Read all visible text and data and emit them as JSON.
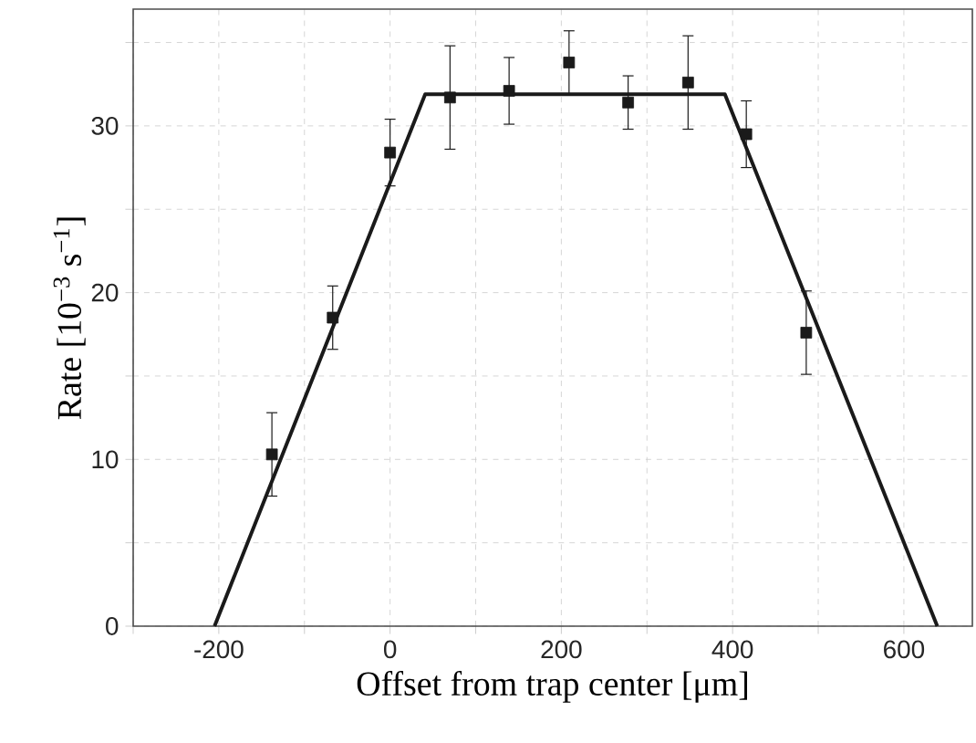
{
  "chart_data": {
    "type": "scatter",
    "xlabel": "Offset from trap center [μm]",
    "ylabel": "Rate [10$^{−3}$ s$^{−1}$]",
    "series": [
      {
        "color": "#1a1a1a",
        "marker": "square",
        "x": [
          -138,
          -67,
          0,
          70,
          139,
          209,
          278,
          348,
          416,
          486
        ],
        "values": [
          10.3,
          18.5,
          28.4,
          31.7,
          32.1,
          33.8,
          31.4,
          32.6,
          29.5,
          17.6
        ],
        "errors": [
          2.5,
          1.9,
          2.0,
          3.1,
          2.0,
          1.9,
          1.6,
          2.8,
          2.0,
          2.5
        ]
      },
      {
        "type": "line",
        "color": "#1a1a1a",
        "line_style": "solid",
        "x": [
          -205,
          41,
          391,
          639
        ],
        "values": [
          0,
          31.9,
          31.9,
          0
        ]
      }
    ],
    "xlim": [
      -300,
      680
    ],
    "ylim": [
      0,
      37
    ],
    "xticks": [
      {
        "value": -300,
        "label": null
      },
      -200,
      {
        "value": -100,
        "label": null
      },
      0,
      {
        "value": 100,
        "label": null
      },
      200,
      {
        "value": 300,
        "label": null
      },
      400,
      {
        "value": 500,
        "label": null
      },
      600
    ],
    "yticks": [
      0,
      {
        "value": 5,
        "label": null
      },
      10,
      {
        "value": 15,
        "label": null
      },
      20,
      {
        "value": 25,
        "label": null
      },
      30,
      {
        "value": 35,
        "label": null
      }
    ],
    "grid": true
  }
}
